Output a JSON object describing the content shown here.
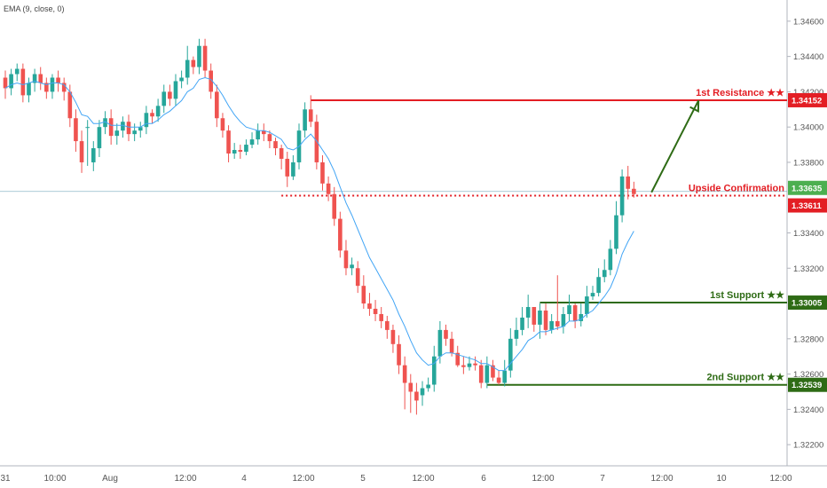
{
  "indicator": {
    "label": "EMA (9, close, 0)"
  },
  "colors": {
    "bull": "#26a69a",
    "bear": "#ef5350",
    "ema": "#42a5f5",
    "resistance": "#e31e24",
    "support": "#2e6b15",
    "current_price": "#4caf50",
    "current_line": "#4a8fa8",
    "axis_text": "#555555",
    "grid": "#e6e9ee"
  },
  "chart_data": {
    "type": "candlestick",
    "title": "",
    "xlabel": "",
    "ylabel": "",
    "ylim": [
      1.3208,
      1.3472
    ],
    "grid": false,
    "x_tick_labels": [
      "31",
      "10:00",
      "Aug",
      "12:00",
      "4",
      "12:00",
      "5",
      "12:00",
      "6",
      "12:00",
      "7",
      "12:00",
      "10",
      "12:00"
    ],
    "y_tick_labels": [
      "1.34600",
      "1.34400",
      "1.34200",
      "1.34000",
      "1.33800",
      "1.33400",
      "1.33200",
      "1.32800",
      "1.32600",
      "1.32400",
      "1.32200"
    ],
    "price_badges": [
      {
        "value": "1.34152",
        "kind": "resistance"
      },
      {
        "value": "1.33635",
        "kind": "current"
      },
      {
        "value": "1.33611",
        "kind": "resistance"
      },
      {
        "value": "1.33005",
        "kind": "support"
      },
      {
        "value": "1.32539",
        "kind": "support"
      }
    ],
    "annotations": [
      {
        "text": "1st Resistance ★★",
        "price": 1.34152
      },
      {
        "text": "Upside Confirmation",
        "price": 1.33611
      },
      {
        "text": "1st Support ★★",
        "price": 1.33005
      },
      {
        "text": "2nd Support ★★",
        "price": 1.32539
      }
    ],
    "levels": [
      {
        "name": "1st Resistance",
        "price": 1.34152,
        "style": "solid",
        "color": "resistance",
        "from_bar": 52
      },
      {
        "name": "Upside Confirmation",
        "price": 1.33611,
        "style": "dotted",
        "color": "resistance",
        "from_bar": 47
      },
      {
        "name": "1st Support",
        "price": 1.33005,
        "style": "solid",
        "color": "support",
        "from_bar": 91
      },
      {
        "name": "2nd Support",
        "price": 1.32539,
        "style": "solid",
        "color": "support",
        "from_bar": 82
      }
    ],
    "current_price": 1.33635,
    "arrow": {
      "from_bar": 110,
      "from_price": 1.3363,
      "to_bar": 118,
      "to_price": 1.3415
    },
    "candles": {
      "open": [
        1.3428,
        1.3422,
        1.343,
        1.3433,
        1.3418,
        1.3425,
        1.343,
        1.3425,
        1.342,
        1.3428,
        1.3425,
        1.342,
        1.3405,
        1.3392,
        1.34,
        1.338,
        1.3388,
        1.34,
        1.3405,
        1.3395,
        1.3398,
        1.3403,
        1.3396,
        1.3398,
        1.34,
        1.3408,
        1.3406,
        1.3412,
        1.342,
        1.3416,
        1.3426,
        1.3428,
        1.3438,
        1.3434,
        1.3446,
        1.3432,
        1.342,
        1.3405,
        1.3398,
        1.3385,
        1.3387,
        1.3386,
        1.339,
        1.3393,
        1.3398,
        1.3396,
        1.3392,
        1.3388,
        1.3382,
        1.3372,
        1.338,
        1.3398,
        1.341,
        1.3403,
        1.338,
        1.3368,
        1.3362,
        1.3348,
        1.333,
        1.332,
        1.332,
        1.331,
        1.33,
        1.3297,
        1.3294,
        1.329,
        1.3285,
        1.3277,
        1.3265,
        1.3255,
        1.325,
        1.3248,
        1.3252,
        1.3254,
        1.327,
        1.3285,
        1.328,
        1.3272,
        1.3265,
        1.3264,
        1.3266,
        1.3265,
        1.3255,
        1.3265,
        1.3258,
        1.3255,
        1.3262,
        1.328,
        1.3285,
        1.3292,
        1.3298,
        1.3288,
        1.3296,
        1.3285,
        1.329,
        1.3287,
        1.3294,
        1.3299,
        1.329,
        1.3294,
        1.3304,
        1.3306,
        1.3315,
        1.3319,
        1.3331,
        1.335,
        1.3372,
        1.3365
      ],
      "close": [
        1.3422,
        1.343,
        1.3433,
        1.3418,
        1.3425,
        1.343,
        1.3425,
        1.342,
        1.3428,
        1.3425,
        1.342,
        1.3405,
        1.3392,
        1.338,
        1.34,
        1.3388,
        1.34,
        1.3405,
        1.3395,
        1.3398,
        1.3403,
        1.3396,
        1.3398,
        1.34,
        1.3408,
        1.3406,
        1.3412,
        1.342,
        1.3416,
        1.3426,
        1.3428,
        1.3438,
        1.3434,
        1.3446,
        1.3432,
        1.342,
        1.3405,
        1.3398,
        1.3385,
        1.3387,
        1.3386,
        1.339,
        1.3393,
        1.3398,
        1.3396,
        1.3392,
        1.3388,
        1.3382,
        1.3372,
        1.338,
        1.3398,
        1.341,
        1.3403,
        1.338,
        1.3368,
        1.3362,
        1.3348,
        1.333,
        1.332,
        1.3322,
        1.331,
        1.33,
        1.3297,
        1.3294,
        1.329,
        1.3285,
        1.3277,
        1.3265,
        1.3255,
        1.325,
        1.3245,
        1.3252,
        1.3254,
        1.327,
        1.3285,
        1.328,
        1.3272,
        1.3265,
        1.3264,
        1.3266,
        1.3265,
        1.3255,
        1.3265,
        1.3258,
        1.3255,
        1.3262,
        1.328,
        1.3285,
        1.3292,
        1.3298,
        1.3288,
        1.3296,
        1.3285,
        1.329,
        1.3287,
        1.3294,
        1.3299,
        1.329,
        1.3294,
        1.3304,
        1.3306,
        1.3315,
        1.3319,
        1.3331,
        1.335,
        1.3372,
        1.3365,
        1.3362
      ],
      "high": [
        1.3432,
        1.3433,
        1.3436,
        1.3436,
        1.3428,
        1.3433,
        1.3434,
        1.3428,
        1.343,
        1.3432,
        1.3428,
        1.3424,
        1.341,
        1.3398,
        1.3404,
        1.3392,
        1.3404,
        1.3409,
        1.341,
        1.3402,
        1.3406,
        1.3407,
        1.3402,
        1.3403,
        1.3412,
        1.341,
        1.3416,
        1.3424,
        1.3424,
        1.343,
        1.3432,
        1.3446,
        1.344,
        1.345,
        1.345,
        1.3436,
        1.3424,
        1.3408,
        1.3401,
        1.3391,
        1.339,
        1.3393,
        1.3397,
        1.3402,
        1.3402,
        1.3398,
        1.3394,
        1.339,
        1.3386,
        1.3384,
        1.3402,
        1.3414,
        1.3418,
        1.3407,
        1.3384,
        1.3372,
        1.3366,
        1.3352,
        1.3336,
        1.3326,
        1.3324,
        1.3316,
        1.3306,
        1.3302,
        1.3298,
        1.3293,
        1.3288,
        1.3282,
        1.327,
        1.326,
        1.3255,
        1.3256,
        1.3258,
        1.3276,
        1.329,
        1.3288,
        1.3284,
        1.3276,
        1.327,
        1.327,
        1.327,
        1.3268,
        1.327,
        1.3268,
        1.3262,
        1.3268,
        1.3286,
        1.3292,
        1.3298,
        1.3305,
        1.3298,
        1.33,
        1.33,
        1.3294,
        1.3316,
        1.3298,
        1.3305,
        1.33,
        1.33,
        1.331,
        1.331,
        1.332,
        1.3325,
        1.3336,
        1.3358,
        1.3376,
        1.3378,
        1.3369
      ],
      "low": [
        1.3416,
        1.3418,
        1.3426,
        1.3414,
        1.3414,
        1.342,
        1.3421,
        1.3416,
        1.3416,
        1.342,
        1.3415,
        1.34,
        1.3386,
        1.3374,
        1.3378,
        1.3375,
        1.3383,
        1.3396,
        1.339,
        1.339,
        1.3394,
        1.3392,
        1.3392,
        1.3394,
        1.3396,
        1.3402,
        1.3403,
        1.3408,
        1.3412,
        1.3412,
        1.3422,
        1.3424,
        1.343,
        1.343,
        1.3428,
        1.3416,
        1.34,
        1.3394,
        1.338,
        1.3382,
        1.3382,
        1.3384,
        1.3388,
        1.339,
        1.3392,
        1.3388,
        1.3384,
        1.3376,
        1.3366,
        1.337,
        1.3376,
        1.3394,
        1.34,
        1.3376,
        1.3364,
        1.3358,
        1.3344,
        1.3326,
        1.3316,
        1.3316,
        1.3306,
        1.3297,
        1.3293,
        1.329,
        1.3286,
        1.328,
        1.3272,
        1.326,
        1.324,
        1.3238,
        1.3237,
        1.3242,
        1.325,
        1.325,
        1.3266,
        1.3276,
        1.327,
        1.3264,
        1.326,
        1.3262,
        1.3262,
        1.3252,
        1.3252,
        1.3256,
        1.3254,
        1.3253,
        1.3258,
        1.3276,
        1.3282,
        1.3286,
        1.3284,
        1.328,
        1.3282,
        1.3283,
        1.3285,
        1.3283,
        1.329,
        1.3286,
        1.3287,
        1.3292,
        1.3302,
        1.3304,
        1.3312,
        1.3316,
        1.3328,
        1.3346,
        1.3359,
        1.336
      ]
    },
    "ema9": [
      1.3422,
      1.3424,
      1.3425,
      1.3424,
      1.3425,
      1.3426,
      1.3425,
      1.3424,
      1.3425,
      1.3425,
      1.3424,
      1.342,
      1.3414,
      1.3407,
      1.3406,
      1.3402,
      1.3402,
      1.3403,
      1.3401,
      1.3401,
      1.3401,
      1.34,
      1.34,
      1.34,
      1.3402,
      1.3402,
      1.3404,
      1.3407,
      1.3409,
      1.3412,
      1.3415,
      1.342,
      1.3422,
      1.3427,
      1.3428,
      1.3427,
      1.3423,
      1.3418,
      1.3412,
      1.3407,
      1.3403,
      1.34,
      1.3399,
      1.3398,
      1.3398,
      1.3397,
      1.3395,
      1.3393,
      1.3388,
      1.3387,
      1.3389,
      1.3393,
      1.3396,
      1.3392,
      1.3387,
      1.3382,
      1.3375,
      1.3366,
      1.3357,
      1.335,
      1.3342,
      1.3334,
      1.3326,
      1.332,
      1.3314,
      1.3308,
      1.3302,
      1.3294,
      1.3287,
      1.3279,
      1.3272,
      1.3268,
      1.3265,
      1.3266,
      1.327,
      1.3272,
      1.3272,
      1.3271,
      1.327,
      1.3269,
      1.3268,
      1.3266,
      1.3266,
      1.3264,
      1.3262,
      1.3262,
      1.3266,
      1.327,
      1.3274,
      1.3279,
      1.3281,
      1.3284,
      1.3284,
      1.3285,
      1.3286,
      1.3287,
      1.329,
      1.329,
      1.3291,
      1.3294,
      1.3296,
      1.33,
      1.3304,
      1.3309,
      1.3317,
      1.3328,
      1.3335,
      1.3341
    ]
  }
}
